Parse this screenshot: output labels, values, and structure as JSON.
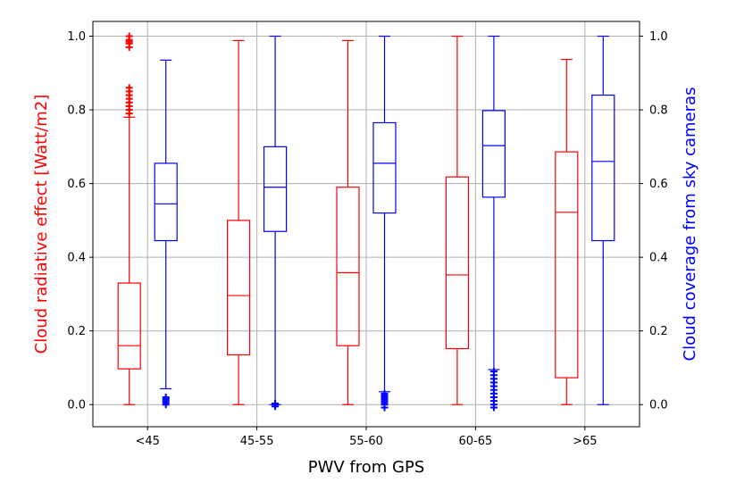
{
  "chart_data": {
    "type": "box",
    "title": "",
    "xlabel": "PWV from GPS",
    "ylabel_left": "Cloud radiative effect [Watt/m2]",
    "ylabel_right": "Cloud coverage from sky cameras",
    "categories": [
      "<45",
      "45-55",
      "55-60",
      "60-65",
      ">65"
    ],
    "ylim": [
      -0.06,
      1.04
    ],
    "y_ticks": [
      "0.0",
      "0.2",
      "0.4",
      "0.6",
      "0.8",
      "1.0"
    ],
    "grid": true,
    "series": [
      {
        "name": "Cloud radiative effect [Watt/m2]",
        "color": "#ff0000",
        "boxes": [
          {
            "whisker_low": 0.0,
            "q1": 0.097,
            "median": 0.16,
            "q3": 0.33,
            "whisker_high": 0.78,
            "outliers": [
              0.79,
              0.8,
              0.81,
              0.82,
              0.83,
              0.84,
              0.85,
              0.86,
              0.97,
              0.98,
              0.985,
              0.99,
              1.0
            ]
          },
          {
            "whisker_low": 0.0,
            "q1": 0.135,
            "median": 0.296,
            "q3": 0.5,
            "whisker_high": 0.988,
            "outliers": []
          },
          {
            "whisker_low": 0.0,
            "q1": 0.16,
            "median": 0.358,
            "q3": 0.59,
            "whisker_high": 0.988,
            "outliers": []
          },
          {
            "whisker_low": 0.0,
            "q1": 0.152,
            "median": 0.352,
            "q3": 0.618,
            "whisker_high": 1.0,
            "outliers": []
          },
          {
            "whisker_low": 0.0,
            "q1": 0.073,
            "median": 0.522,
            "q3": 0.686,
            "whisker_high": 0.937,
            "outliers": []
          }
        ]
      },
      {
        "name": "Cloud coverage from sky cameras",
        "color": "#0000ff",
        "boxes": [
          {
            "whisker_low": 0.043,
            "q1": 0.445,
            "median": 0.545,
            "q3": 0.655,
            "whisker_high": 0.935,
            "outliers": [
              0.0,
              0.005,
              0.01,
              0.015,
              0.02
            ]
          },
          {
            "whisker_low": 0.0,
            "q1": 0.47,
            "median": 0.59,
            "q3": 0.7,
            "whisker_high": 1.0,
            "outliers": [
              0.0,
              0.003,
              -0.005
            ]
          },
          {
            "whisker_low": 0.035,
            "q1": 0.52,
            "median": 0.655,
            "q3": 0.765,
            "whisker_high": 1.0,
            "outliers": [
              -0.008,
              0.0,
              0.005,
              0.01,
              0.015,
              0.02,
              0.025,
              0.03
            ]
          },
          {
            "whisker_low": 0.095,
            "q1": 0.563,
            "median": 0.703,
            "q3": 0.798,
            "whisker_high": 1.0,
            "outliers": [
              -0.008,
              0.0,
              0.01,
              0.02,
              0.03,
              0.04,
              0.05,
              0.06,
              0.07,
              0.08,
              0.09
            ]
          },
          {
            "whisker_low": 0.0,
            "q1": 0.445,
            "median": 0.66,
            "q3": 0.84,
            "whisker_high": 1.0,
            "outliers": []
          }
        ]
      }
    ]
  }
}
